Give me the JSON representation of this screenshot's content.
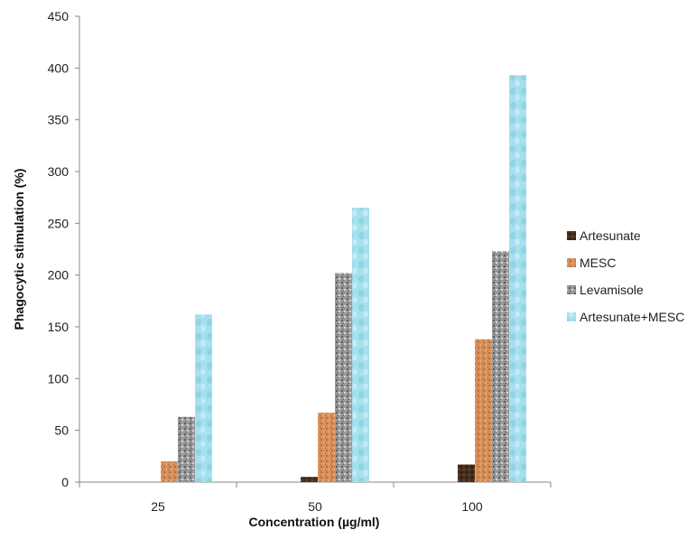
{
  "chart_data": {
    "type": "bar",
    "title": "",
    "xlabel": "Concentration (µg/ml)",
    "ylabel": "Phagocytic stimulation (%)",
    "categories": [
      "25",
      "50",
      "100"
    ],
    "ylim": [
      0,
      450
    ],
    "yticks": [
      0,
      50,
      100,
      150,
      200,
      250,
      300,
      350,
      400,
      450
    ],
    "grid": false,
    "legend_position": "right",
    "series": [
      {
        "name": "Artesunate",
        "values": [
          0,
          5,
          17
        ],
        "color": "#4a2e1c",
        "pattern": "dark-texture"
      },
      {
        "name": "MESC",
        "values": [
          20,
          67,
          138
        ],
        "color": "#d8915c",
        "pattern": "orange-texture"
      },
      {
        "name": "Levamisole",
        "values": [
          63,
          202,
          223
        ],
        "color": "#9a9a9a",
        "pattern": "grey-texture"
      },
      {
        "name": "Artesunate+MESC",
        "values": [
          162,
          265,
          393
        ],
        "color": "#a6e0ee",
        "pattern": "cyan-texture"
      }
    ]
  }
}
